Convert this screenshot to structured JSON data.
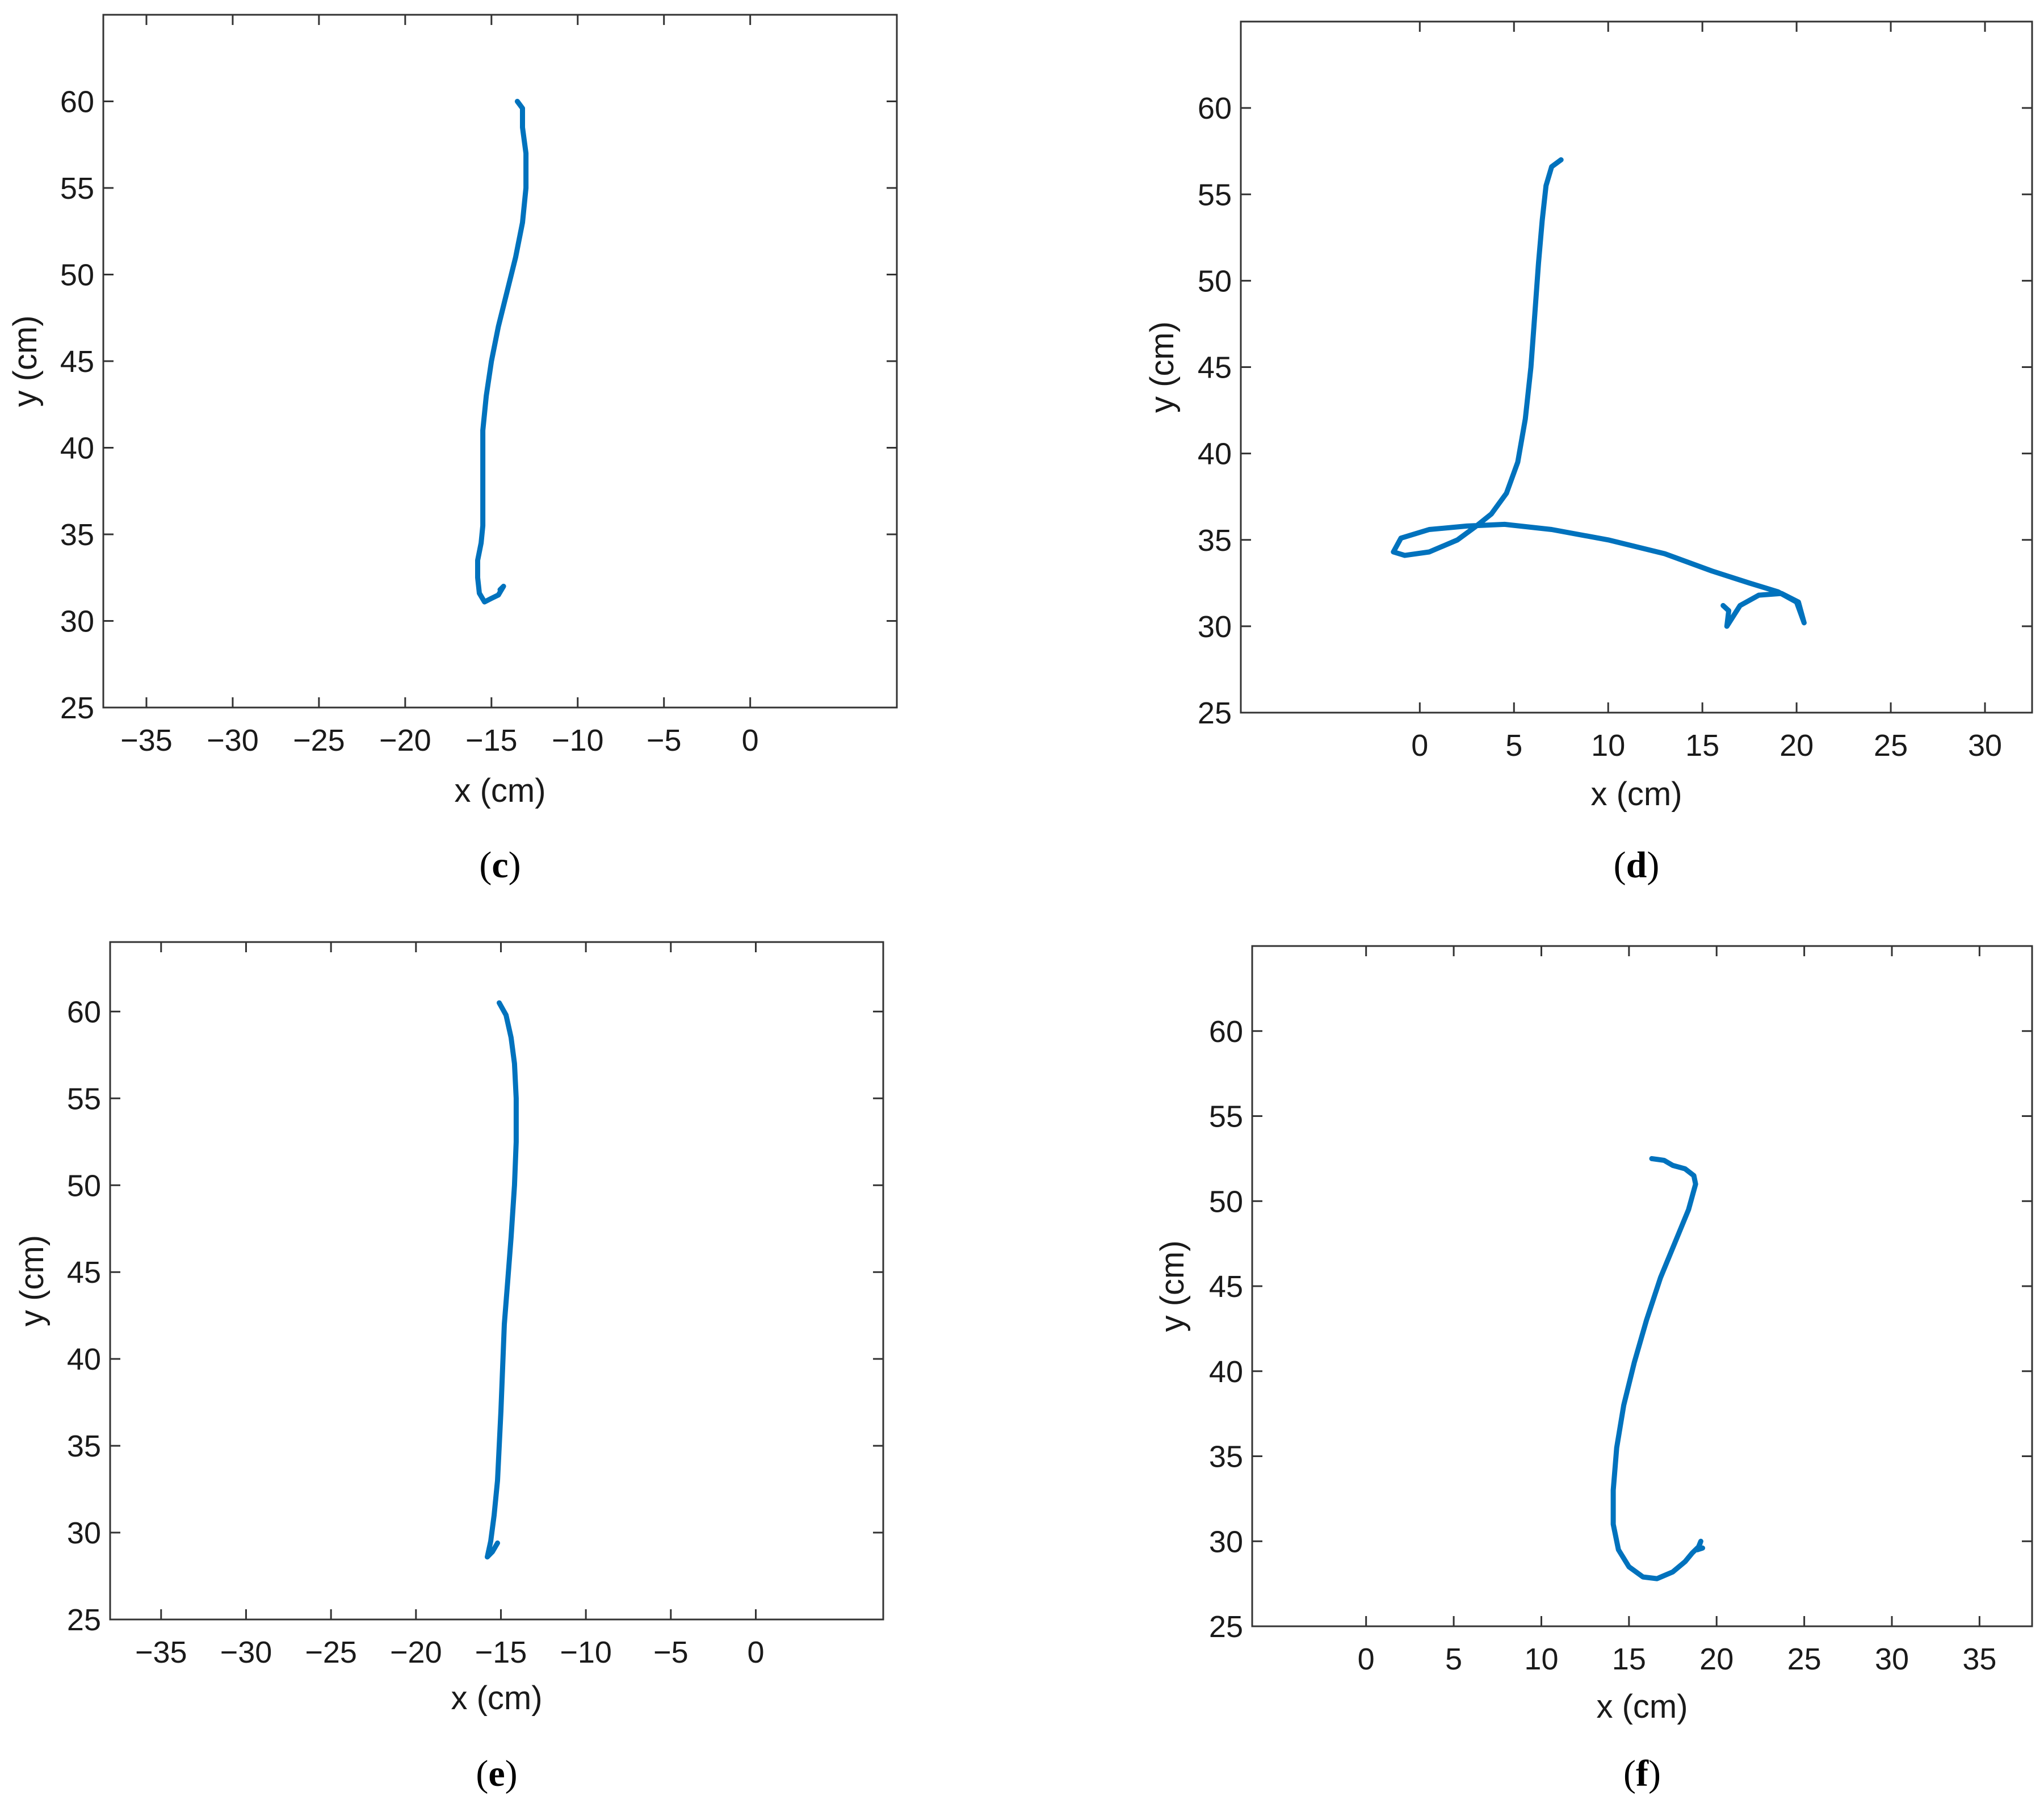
{
  "colors": {
    "line": "#0072bd",
    "axes": "#333333"
  },
  "chart_data": [
    {
      "type": "line",
      "panel": "c",
      "caption": "(c)",
      "xlabel": "x (cm)",
      "ylabel": "y (cm)",
      "xlim": [
        -37.5,
        8.5
      ],
      "ylim": [
        25,
        65
      ],
      "xticks": [
        -35,
        -30,
        -25,
        -20,
        -15,
        -10,
        -5,
        0
      ],
      "xtick_labels": [
        "−35",
        "−30",
        "−25",
        "−20",
        "−15",
        "−10",
        "−5",
        "0"
      ],
      "yticks": [
        25,
        30,
        35,
        40,
        45,
        50,
        55,
        60
      ],
      "ytick_labels": [
        "25",
        "30",
        "35",
        "40",
        "45",
        "50",
        "55",
        "60"
      ],
      "series": [
        {
          "x": [
            -13.5,
            -13.2,
            -13.2,
            -13.0,
            -13.0,
            -13.2,
            -13.6,
            -14.1,
            -14.6,
            -15.0,
            -15.3,
            -15.5,
            -15.5,
            -15.5,
            -15.5,
            -15.6,
            -15.8,
            -15.8,
            -15.7,
            -15.4,
            -15.0,
            -14.6,
            -14.3,
            -14.5
          ],
          "y": [
            60.0,
            59.6,
            58.5,
            57.0,
            55.0,
            53.0,
            51.0,
            49.0,
            47.0,
            45.0,
            43.0,
            41.0,
            39.0,
            37.0,
            35.5,
            34.5,
            33.5,
            32.5,
            31.6,
            31.1,
            31.3,
            31.5,
            32.0,
            31.8
          ]
        }
      ]
    },
    {
      "type": "line",
      "panel": "d",
      "caption": "(d)",
      "xlabel": "x (cm)",
      "ylabel": "y (cm)",
      "xlim": [
        -9.5,
        32.5
      ],
      "ylim": [
        25,
        65
      ],
      "xticks": [
        0,
        5,
        10,
        15,
        20,
        25,
        30
      ],
      "xtick_labels": [
        "0",
        "5",
        "10",
        "15",
        "20",
        "25",
        "30"
      ],
      "yticks": [
        25,
        30,
        35,
        40,
        45,
        50,
        55,
        60
      ],
      "ytick_labels": [
        "25",
        "30",
        "35",
        "40",
        "45",
        "50",
        "55",
        "60"
      ],
      "series": [
        {
          "x": [
            7.5,
            7.0,
            6.7,
            6.5,
            6.3,
            6.1,
            5.9,
            5.6,
            5.2,
            4.6,
            3.8,
            3.0,
            2.0,
            0.5,
            -0.8,
            -1.4,
            -1.0,
            0.5,
            2.5,
            4.5,
            7.0,
            10.0,
            13.0,
            15.5,
            17.5,
            19.0,
            20.0,
            20.4,
            20.1,
            19.2,
            18.0,
            17.0,
            16.3,
            16.4,
            16.1
          ],
          "y": [
            57.0,
            56.6,
            55.5,
            53.5,
            51.0,
            48.0,
            45.0,
            42.0,
            39.5,
            37.7,
            36.5,
            35.8,
            35.0,
            34.3,
            34.1,
            34.3,
            35.1,
            35.6,
            35.8,
            35.9,
            35.6,
            35.0,
            34.2,
            33.2,
            32.5,
            32.0,
            31.4,
            30.2,
            31.4,
            31.9,
            31.8,
            31.2,
            30.0,
            30.9,
            31.2
          ]
        }
      ]
    },
    {
      "type": "line",
      "panel": "e",
      "caption": "(e)",
      "xlabel": "x (cm)",
      "ylabel": "y (cm)",
      "xlim": [
        -38.0,
        7.5
      ],
      "ylim": [
        25,
        64
      ],
      "xticks": [
        -35,
        -30,
        -25,
        -20,
        -15,
        -10,
        -5,
        0
      ],
      "xtick_labels": [
        "−35",
        "−30",
        "−25",
        "−20",
        "−15",
        "−10",
        "−5",
        "0"
      ],
      "yticks": [
        25,
        30,
        35,
        40,
        45,
        50,
        55,
        60
      ],
      "ytick_labels": [
        "25",
        "30",
        "35",
        "40",
        "45",
        "50",
        "55",
        "60"
      ],
      "series": [
        {
          "x": [
            -15.1,
            -14.7,
            -14.4,
            -14.2,
            -14.1,
            -14.1,
            -14.2,
            -14.4,
            -14.6,
            -14.8,
            -14.9,
            -15.0,
            -15.1,
            -15.2,
            -15.4,
            -15.6,
            -15.8,
            -15.5,
            -15.2
          ],
          "y": [
            60.5,
            59.8,
            58.5,
            57.0,
            55.0,
            52.5,
            50.0,
            47.0,
            44.5,
            42.0,
            39.5,
            37.0,
            35.0,
            33.0,
            31.0,
            29.5,
            28.6,
            28.9,
            29.4
          ]
        }
      ]
    },
    {
      "type": "line",
      "panel": "f",
      "caption": "(f)",
      "xlabel": "x (cm)",
      "ylabel": "y (cm)",
      "xlim": [
        -6.5,
        38.0
      ],
      "ylim": [
        25,
        65
      ],
      "xticks": [
        0,
        5,
        10,
        15,
        20,
        25,
        30,
        35
      ],
      "xtick_labels": [
        "0",
        "5",
        "10",
        "15",
        "20",
        "25",
        "30",
        "35"
      ],
      "yticks": [
        25,
        30,
        35,
        40,
        45,
        50,
        55,
        60
      ],
      "ytick_labels": [
        "25",
        "30",
        "35",
        "40",
        "45",
        "50",
        "55",
        "60"
      ],
      "series": [
        {
          "x": [
            16.3,
            17.0,
            17.5,
            18.2,
            18.7,
            18.8,
            18.4,
            17.6,
            16.8,
            16.0,
            15.3,
            14.7,
            14.3,
            14.1,
            14.1,
            14.4,
            15.0,
            15.8,
            16.6,
            17.5,
            18.2,
            18.6,
            19.0,
            19.1,
            18.9,
            19.2
          ],
          "y": [
            52.5,
            52.4,
            52.1,
            51.9,
            51.5,
            51.0,
            49.5,
            47.5,
            45.5,
            43.0,
            40.5,
            38.0,
            35.5,
            33.0,
            31.0,
            29.5,
            28.5,
            27.9,
            27.8,
            28.2,
            28.8,
            29.3,
            29.7,
            30.0,
            29.5,
            29.6
          ]
        }
      ]
    }
  ]
}
